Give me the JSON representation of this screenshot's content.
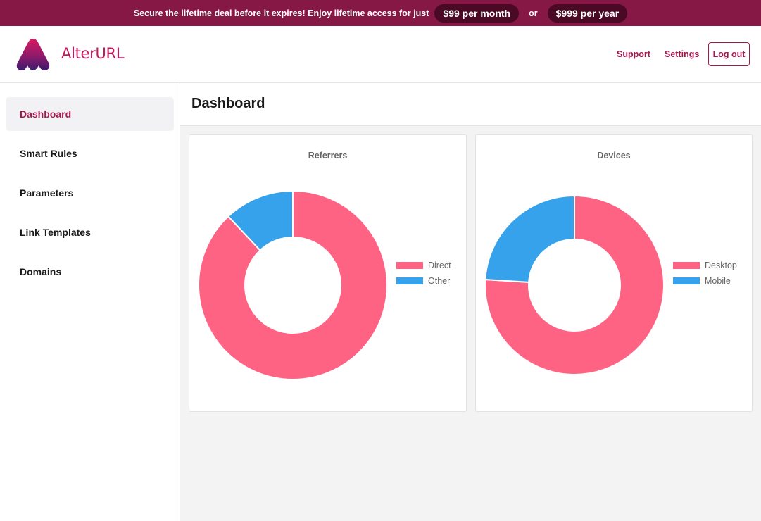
{
  "banner": {
    "message": "Secure the lifetime deal before it expires! Enjoy lifetime access for just",
    "monthly_price": "$99 per month",
    "separator": "or",
    "yearly_price": "$999 per year",
    "background_color": "#861846"
  },
  "header": {
    "brand": "AlterURL",
    "logo_icon": "alterurl-logo-icon",
    "support_label": "Support",
    "settings_label": "Settings",
    "logout_label": "Log out"
  },
  "sidebar": {
    "items": [
      {
        "label": "Dashboard",
        "active": true
      },
      {
        "label": "Smart Rules",
        "active": false
      },
      {
        "label": "Parameters",
        "active": false
      },
      {
        "label": "Link Templates",
        "active": false
      },
      {
        "label": "Domains",
        "active": false
      }
    ]
  },
  "main": {
    "title": "Dashboard"
  },
  "colors": {
    "accent": "#a3174f",
    "series_pink": "#ff6384",
    "series_blue": "#36a2eb"
  },
  "chart_data": [
    {
      "type": "pie",
      "title": "Referrers",
      "categories": [
        "Direct",
        "Other"
      ],
      "values": [
        88,
        12
      ],
      "colors": [
        "#ff6384",
        "#36a2eb"
      ],
      "legend": "right"
    },
    {
      "type": "pie",
      "title": "Devices",
      "categories": [
        "Desktop",
        "Mobile"
      ],
      "values": [
        76,
        24
      ],
      "colors": [
        "#ff6384",
        "#36a2eb"
      ],
      "legend": "right"
    }
  ]
}
